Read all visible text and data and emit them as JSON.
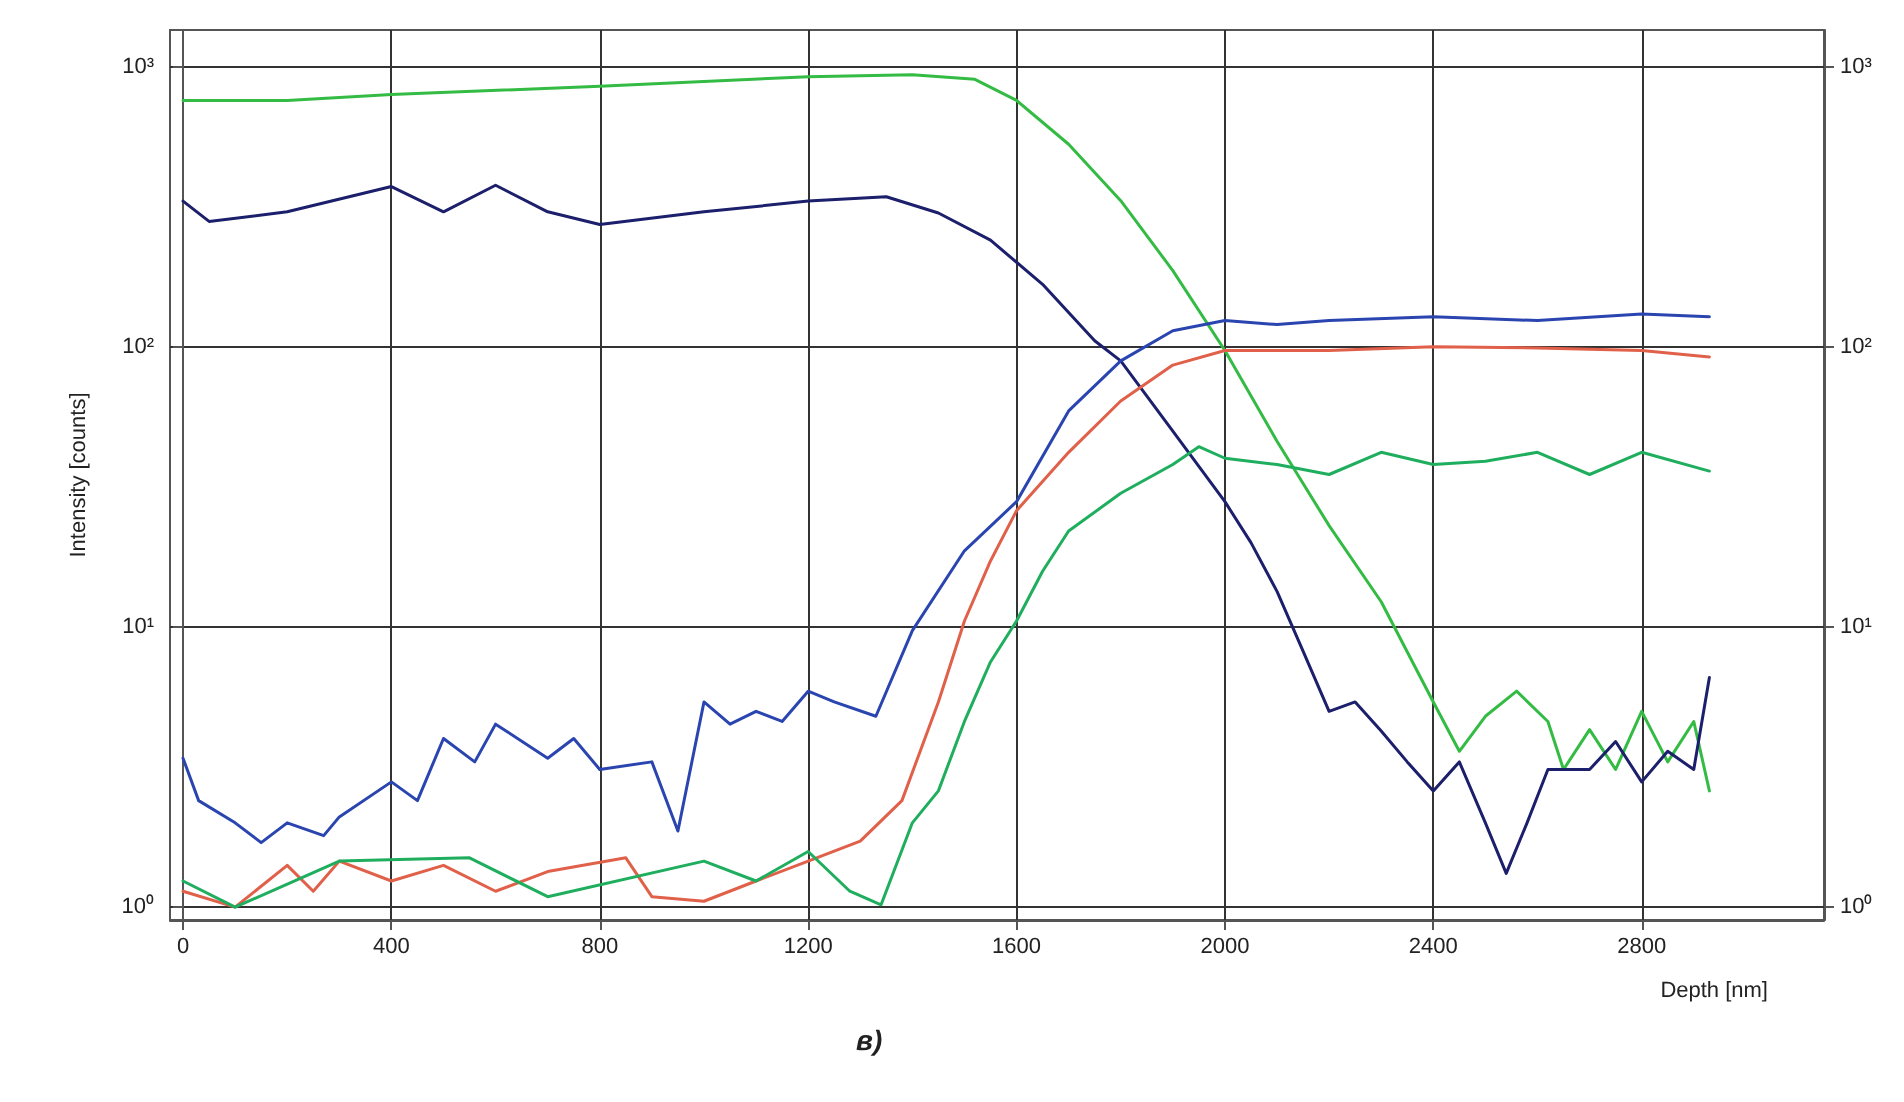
{
  "chart_data": {
    "type": "line",
    "xlabel": "Depth [nm]",
    "ylabel": "Intensity [counts]",
    "annotations": [
      "в)"
    ],
    "log": "y",
    "grid": true,
    "marker": "none",
    "line_style": "solid",
    "xlim": [
      -25,
      3150
    ],
    "xticks": [
      0,
      400,
      800,
      1200,
      1600,
      2000,
      2400,
      2800
    ],
    "ylim": [
      0.9,
      1350
    ],
    "yticks": [
      {
        "value": 1,
        "label": "10⁰"
      },
      {
        "value": 10,
        "label": "10¹"
      },
      {
        "value": 100,
        "label": "10²"
      },
      {
        "value": 1000,
        "label": "10³"
      }
    ],
    "series": [
      {
        "color": "#33bb44",
        "x": [
          0,
          200,
          400,
          800,
          1200,
          1400,
          1520,
          1600,
          1700,
          1800,
          1900,
          2000,
          2100,
          2200,
          2300,
          2400,
          2450,
          2500,
          2560,
          2620,
          2650,
          2700,
          2750,
          2800,
          2850,
          2900,
          2930
        ],
        "values": [
          757,
          757,
          794,
          850,
          920,
          935,
          900,
          757,
          528,
          332,
          187,
          97,
          46,
          23,
          12.3,
          5.4,
          3.6,
          4.8,
          5.9,
          4.6,
          3.1,
          4.3,
          3.1,
          5.0,
          3.3,
          4.6,
          2.6
        ]
      },
      {
        "color": "#1c1f6b",
        "x": [
          0,
          50,
          200,
          400,
          500,
          600,
          700,
          800,
          1000,
          1200,
          1350,
          1450,
          1550,
          1650,
          1750,
          1800,
          1900,
          2000,
          2050,
          2100,
          2150,
          2200,
          2250,
          2300,
          2350,
          2400,
          2450,
          2500,
          2540,
          2580,
          2620,
          2700,
          2750,
          2800,
          2850,
          2900,
          2930
        ],
        "values": [
          331,
          280,
          303,
          373,
          303,
          377,
          303,
          273,
          303,
          331,
          343,
          300,
          240,
          167,
          105,
          89,
          50,
          28,
          20,
          13.4,
          8.2,
          5.0,
          5.4,
          4.25,
          3.3,
          2.6,
          3.3,
          2.0,
          1.32,
          2.0,
          3.1,
          3.1,
          3.9,
          2.8,
          3.6,
          3.1,
          6.6
        ]
      },
      {
        "color": "#2a45b0",
        "x": [
          0,
          30,
          100,
          150,
          200,
          270,
          300,
          400,
          450,
          500,
          560,
          600,
          700,
          750,
          800,
          900,
          950,
          1000,
          1050,
          1100,
          1150,
          1200,
          1250,
          1330,
          1400,
          1500,
          1600,
          1700,
          1800,
          1900,
          2000,
          2100,
          2200,
          2400,
          2600,
          2800,
          2930
        ],
        "values": [
          3.4,
          2.4,
          2.0,
          1.7,
          2.0,
          1.8,
          2.1,
          2.8,
          2.4,
          4.0,
          3.3,
          4.5,
          3.4,
          4.0,
          3.1,
          3.3,
          1.87,
          5.4,
          4.5,
          5.0,
          4.6,
          5.9,
          5.4,
          4.8,
          9.7,
          18.7,
          28,
          59,
          89,
          114,
          124,
          120,
          124,
          128,
          124,
          131,
          128
        ]
      },
      {
        "color": "#e0604a",
        "x": [
          0,
          100,
          200,
          250,
          300,
          400,
          500,
          600,
          700,
          850,
          900,
          1000,
          1100,
          1200,
          1300,
          1380,
          1450,
          1500,
          1550,
          1600,
          1700,
          1800,
          1900,
          2000,
          2200,
          2400,
          2600,
          2800,
          2930
        ],
        "values": [
          1.14,
          1.0,
          1.41,
          1.14,
          1.46,
          1.24,
          1.41,
          1.14,
          1.34,
          1.5,
          1.09,
          1.05,
          1.24,
          1.46,
          1.72,
          2.4,
          5.4,
          10.5,
          17.2,
          26,
          42,
          64,
          86,
          97,
          97,
          100,
          99,
          97,
          92
        ]
      },
      {
        "color": "#1fae5e",
        "x": [
          0,
          100,
          300,
          550,
          700,
          1000,
          1100,
          1200,
          1280,
          1340,
          1400,
          1450,
          1500,
          1550,
          1600,
          1650,
          1700,
          1800,
          1900,
          1950,
          2000,
          2100,
          2200,
          2300,
          2400,
          2500,
          2600,
          2700,
          2800,
          2930
        ],
        "values": [
          1.24,
          1.0,
          1.46,
          1.5,
          1.09,
          1.46,
          1.24,
          1.58,
          1.14,
          1.02,
          2.0,
          2.6,
          4.6,
          7.5,
          10.5,
          15.8,
          22,
          30,
          38,
          44,
          40,
          38,
          35,
          42,
          38,
          39,
          42,
          35,
          42,
          36
        ]
      }
    ]
  }
}
